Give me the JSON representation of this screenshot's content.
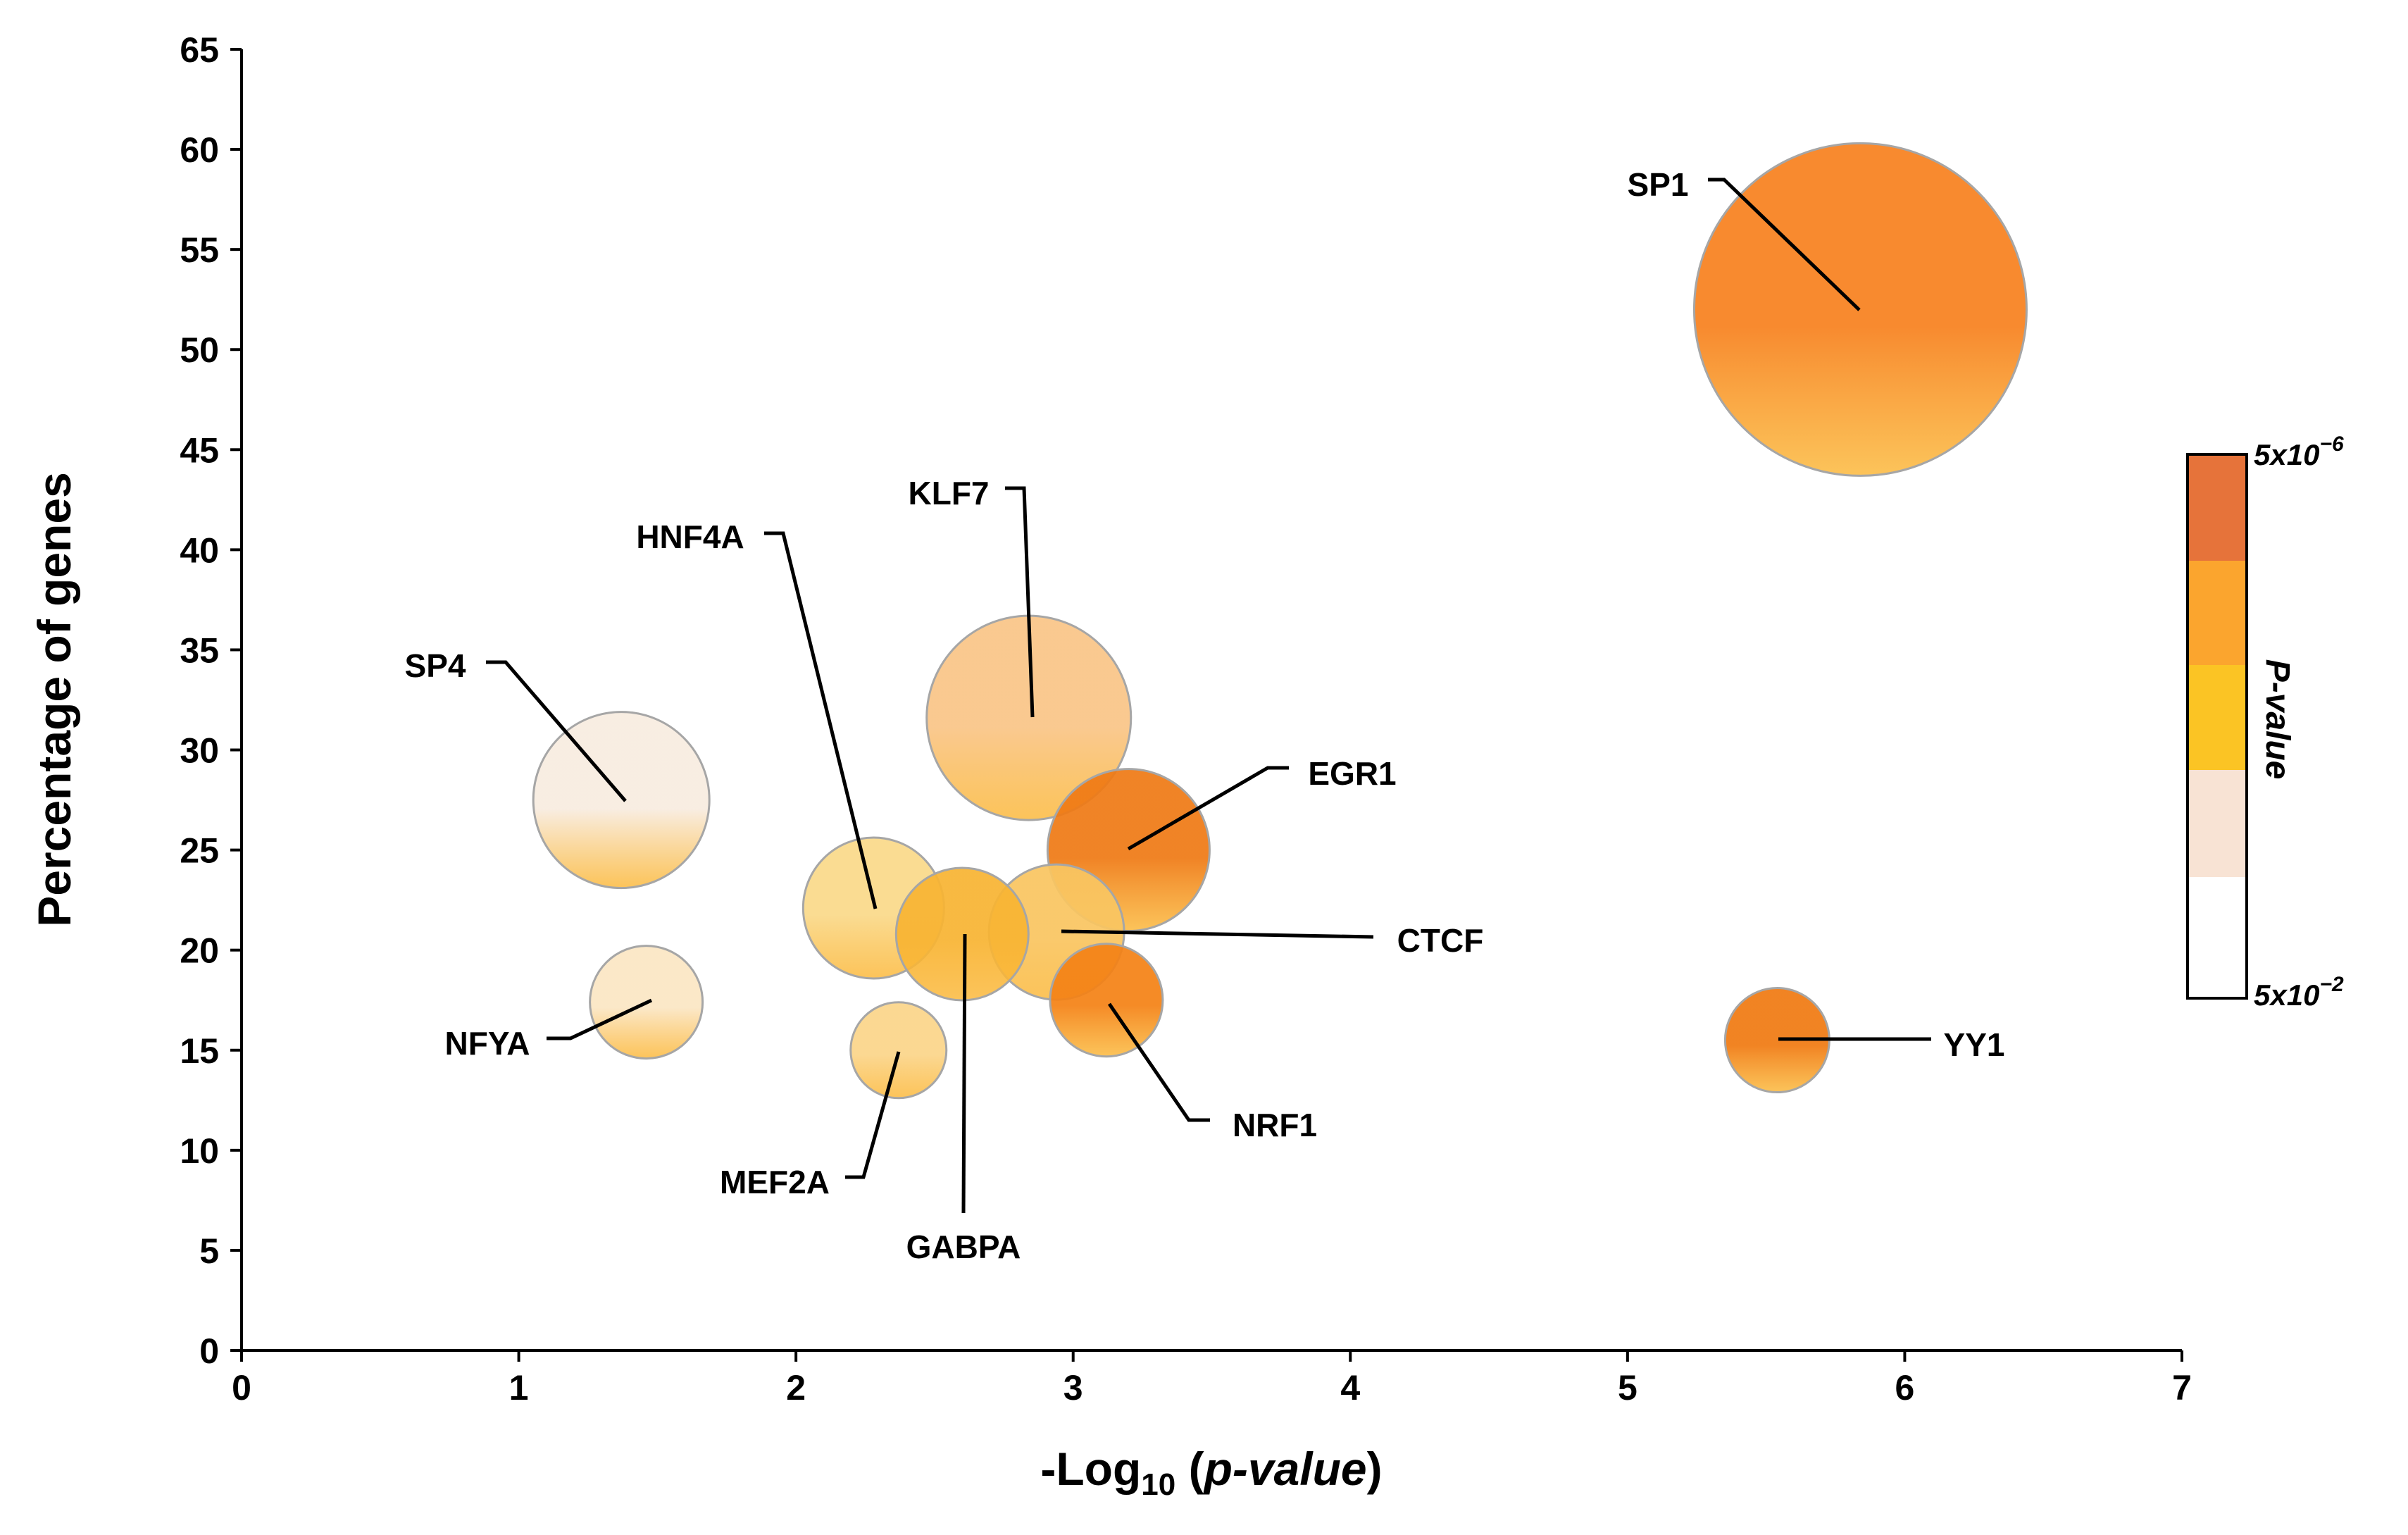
{
  "chart_data": {
    "type": "scatter",
    "subtype": "bubble",
    "title": "",
    "xlabel": {
      "prefix": "-Log",
      "subscript": "10",
      "italic": "p-value"
    },
    "ylabel": "Percentage of genes",
    "xlim": [
      0,
      7
    ],
    "ylim": [
      0,
      65
    ],
    "xticks": [
      "0",
      "1",
      "2",
      "3",
      "4",
      "5",
      "6",
      "7"
    ],
    "yticks": [
      "0",
      "5",
      "10",
      "15",
      "20",
      "25",
      "30",
      "35",
      "40",
      "45",
      "50",
      "55",
      "60",
      "65"
    ],
    "grid": false,
    "points": [
      {
        "label": "SP4",
        "x": 1.37,
        "y": 27.5,
        "color": "#f8ece0"
      },
      {
        "label": "NFYA",
        "x": 1.46,
        "y": 17.4,
        "color": "#fbe6c4"
      },
      {
        "label": "HNF4A",
        "x": 2.28,
        "y": 22.1,
        "color": "#fad98a"
      },
      {
        "label": "MEF2A",
        "x": 2.37,
        "y": 15.0,
        "color": "#fbd58a"
      },
      {
        "label": "GABPA",
        "x": 2.6,
        "y": 20.8,
        "color": "#f8b433"
      },
      {
        "label": "KLF7",
        "x": 2.84,
        "y": 31.6,
        "color": "#f9c587"
      },
      {
        "label": "CTCF",
        "x": 2.94,
        "y": 20.9,
        "color": "#f9c561"
      },
      {
        "label": "NRF1",
        "x": 3.12,
        "y": 17.5,
        "color": "#f48216"
      },
      {
        "label": "EGR1",
        "x": 3.2,
        "y": 25.0,
        "color": "#ef7a15"
      },
      {
        "label": "YY1",
        "x": 5.54,
        "y": 15.5,
        "color": "#f07a12"
      },
      {
        "label": "SP1",
        "x": 5.84,
        "y": 52.0,
        "color": "#f7811f"
      }
    ],
    "colorbar": {
      "title": "P-value",
      "top_label": {
        "base": "5x10",
        "exponent": "−6"
      },
      "bottom_label": {
        "base": "5x10",
        "exponent": "−2"
      },
      "colors": [
        "#e6733a",
        "#fba52e",
        "#fbc424",
        "#f8e3d4",
        "#ffffff"
      ]
    }
  }
}
